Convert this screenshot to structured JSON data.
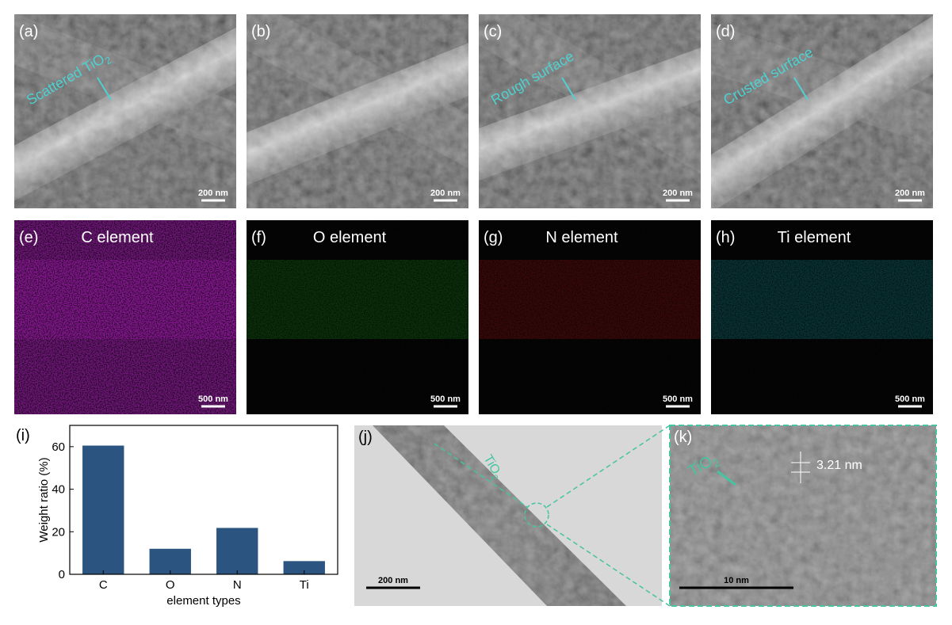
{
  "panels": [
    {
      "label": "(a)",
      "caption": "Scattered TiO",
      "caption_sub": "2",
      "scale": "200 nm"
    },
    {
      "label": "(b)",
      "scale": "200 nm"
    },
    {
      "label": "(c)",
      "caption": "Rough surface",
      "scale": "200 nm"
    },
    {
      "label": "(d)",
      "caption": "Crusted surface",
      "scale": "200 nm"
    }
  ],
  "maps": [
    {
      "label": "(e)",
      "caption": "C element",
      "color": "#a21caf",
      "scale": "500 nm"
    },
    {
      "label": "(f)",
      "caption": "O element",
      "color": "#1fae1f",
      "scale": "500 nm"
    },
    {
      "label": "(g)",
      "caption": "N element",
      "color": "#d01818",
      "scale": "500 nm"
    },
    {
      "label": "(h)",
      "caption": "Ti element",
      "color": "#1cb8c0",
      "scale": "500 nm"
    }
  ],
  "chart_data": {
    "type": "bar",
    "label": "(i)",
    "categories": [
      "C",
      "O",
      "N",
      "Ti"
    ],
    "values": [
      60.5,
      12,
      21.8,
      6.2
    ],
    "color": "#2b5480",
    "ylim": [
      0,
      70
    ],
    "yticks": [
      0,
      20,
      40,
      60
    ],
    "ylabel": "Weight ratio (%)",
    "xlabel": "element types"
  },
  "tem": {
    "label": "(j)",
    "annotation": "TiO",
    "annotation_sub": "2",
    "scale": "200 nm"
  },
  "hrtem": {
    "label": "(k)",
    "annotation": "TiO",
    "annotation_sub": "2",
    "spacing": "3.21 nm",
    "scale": "10 nm"
  }
}
